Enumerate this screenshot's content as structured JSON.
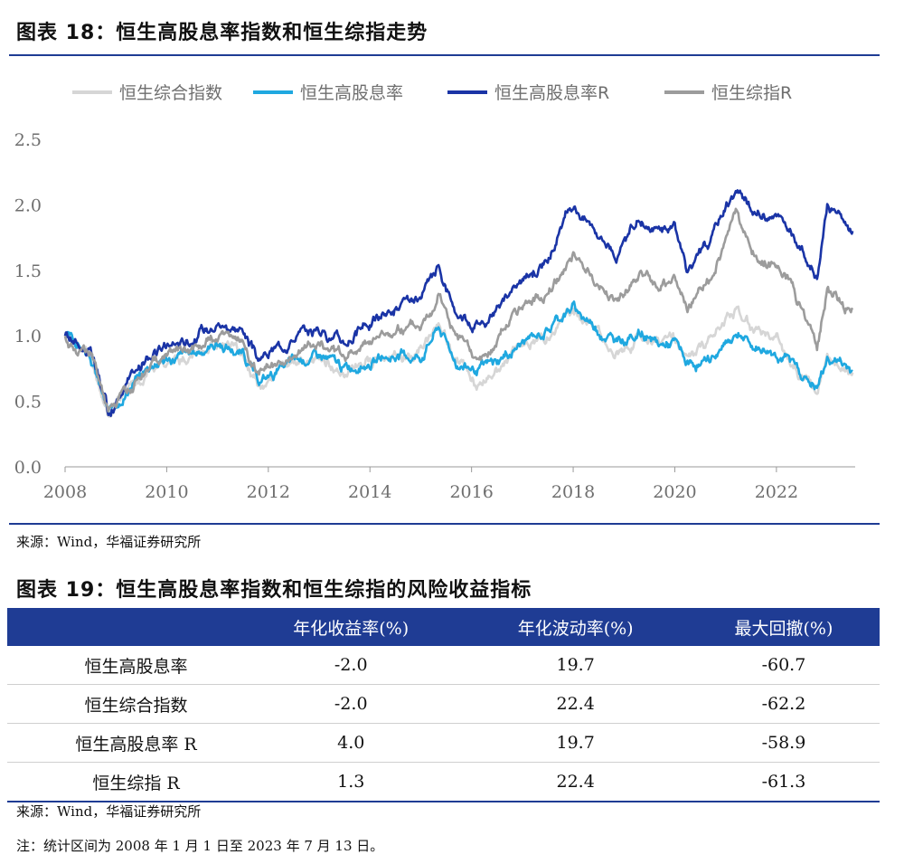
{
  "fig18": {
    "title": "图表 18：恒生高股息率指数和恒生综指走势",
    "source": "来源：Wind，华福证券研究所"
  },
  "chart_data": {
    "type": "line",
    "title": "",
    "xlabel": "",
    "ylabel": "",
    "xlim": [
      2008,
      2023.55
    ],
    "ylim": [
      0,
      2.5
    ],
    "y_ticks": [
      "0.0",
      "0.5",
      "1.0",
      "1.5",
      "2.0",
      "2.5"
    ],
    "x_ticks": [
      "2008",
      "2010",
      "2012",
      "2014",
      "2016",
      "2018",
      "2020",
      "2022"
    ],
    "grid": false,
    "legend": "top",
    "x": [
      2008.0,
      2008.5,
      2008.85,
      2009.25,
      2009.75,
      2010.5,
      2011.0,
      2011.5,
      2011.8,
      2012.5,
      2013.0,
      2013.5,
      2014.0,
      2014.5,
      2015.0,
      2015.35,
      2015.7,
      2016.1,
      2016.5,
      2017.0,
      2017.5,
      2018.0,
      2018.5,
      2018.9,
      2019.3,
      2019.7,
      2020.0,
      2020.25,
      2020.7,
      2021.0,
      2021.2,
      2021.5,
      2022.0,
      2022.3,
      2022.8,
      2023.0,
      2023.2,
      2023.5
    ],
    "series": [
      {
        "name": "恒生综合指数",
        "color": "#d6d6d6",
        "values": [
          1.0,
          0.85,
          0.4,
          0.6,
          0.78,
          0.85,
          0.95,
          0.85,
          0.62,
          0.8,
          0.84,
          0.72,
          0.8,
          0.82,
          0.9,
          1.12,
          0.8,
          0.66,
          0.74,
          0.92,
          1.02,
          1.18,
          1.02,
          0.88,
          1.0,
          0.94,
          0.95,
          0.8,
          0.98,
          1.15,
          1.24,
          1.05,
          0.98,
          0.8,
          0.6,
          0.82,
          0.8,
          0.72
        ]
      },
      {
        "name": "恒生高股息率",
        "color": "#1fa8e0",
        "values": [
          1.0,
          0.85,
          0.4,
          0.6,
          0.8,
          0.86,
          0.95,
          0.85,
          0.64,
          0.8,
          0.85,
          0.75,
          0.8,
          0.84,
          0.84,
          1.07,
          0.8,
          0.74,
          0.8,
          0.95,
          1.05,
          1.22,
          1.05,
          0.95,
          1.02,
          0.92,
          0.95,
          0.78,
          0.8,
          0.93,
          1.02,
          0.92,
          0.88,
          0.8,
          0.6,
          0.82,
          0.82,
          0.73
        ]
      },
      {
        "name": "恒生高股息率R",
        "color": "#1a34a6",
        "values": [
          1.0,
          0.88,
          0.4,
          0.65,
          0.88,
          0.98,
          1.1,
          1.05,
          0.8,
          1.0,
          1.05,
          0.95,
          1.1,
          1.2,
          1.25,
          1.52,
          1.18,
          1.1,
          1.2,
          1.42,
          1.6,
          2.0,
          1.8,
          1.62,
          1.9,
          1.8,
          1.85,
          1.5,
          1.7,
          2.0,
          2.12,
          1.95,
          1.9,
          1.8,
          1.42,
          2.0,
          1.95,
          1.8
        ]
      },
      {
        "name": "恒生综指R",
        "color": "#9c9c9c",
        "values": [
          1.0,
          0.85,
          0.4,
          0.62,
          0.82,
          0.9,
          1.0,
          0.95,
          0.7,
          0.88,
          0.95,
          0.85,
          0.95,
          1.05,
          1.1,
          1.35,
          1.0,
          0.8,
          0.95,
          1.2,
          1.35,
          1.62,
          1.4,
          1.28,
          1.45,
          1.38,
          1.45,
          1.2,
          1.45,
          1.72,
          1.95,
          1.6,
          1.55,
          1.4,
          0.92,
          1.38,
          1.3,
          1.2
        ]
      }
    ]
  },
  "fig19": {
    "title": "图表 19：恒生高股息率指数和恒生综指的风险收益指标",
    "headers": [
      "",
      "年化收益率(%)",
      "年化波动率(%)",
      "最大回撤(%)"
    ],
    "rows": [
      [
        "恒生高股息率",
        "-2.0",
        "19.7",
        "-60.7"
      ],
      [
        "恒生综合指数",
        "-2.0",
        "22.4",
        "-62.2"
      ],
      [
        "恒生高股息率 R",
        "4.0",
        "19.7",
        "-58.9"
      ],
      [
        "恒生综指 R",
        "1.3",
        "22.4",
        "-61.3"
      ]
    ],
    "source": "来源：Wind，华福证券研究所",
    "note": "注：统计区间为 2008 年 1 月 1 日至 2023 年 7 月 13 日。"
  }
}
